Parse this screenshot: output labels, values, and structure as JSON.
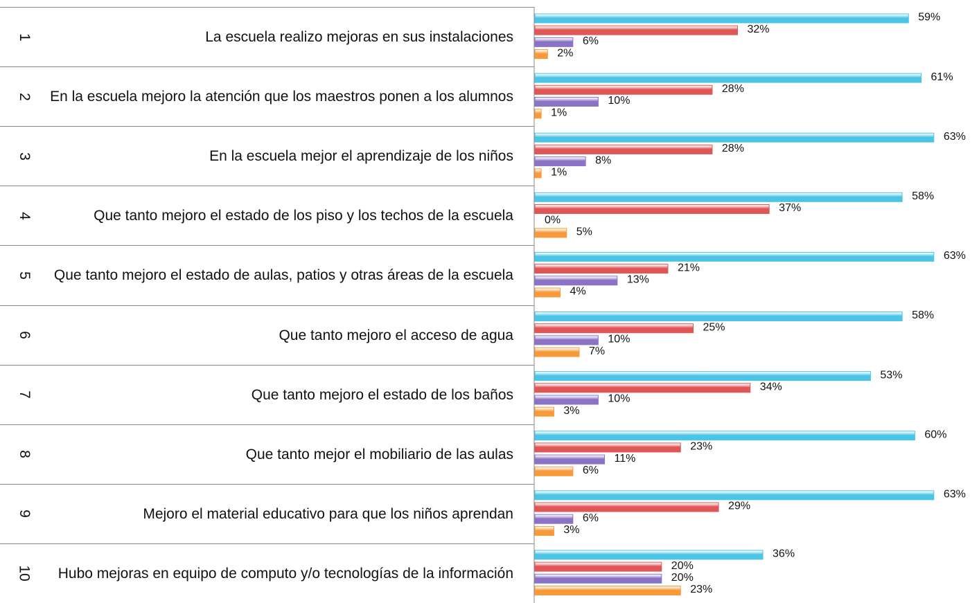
{
  "chart_data": {
    "type": "bar",
    "orientation": "horizontal",
    "row_numbers": [
      "1",
      "2",
      "3",
      "4",
      "5",
      "6",
      "7",
      "8",
      "9",
      "10"
    ],
    "categories": [
      "La escuela realizo mejoras en sus instalaciones",
      "En la escuela mejoro la atención que los maestros ponen a los alumnos",
      "En la escuela mejor el aprendizaje de los niños",
      "Que tanto mejoro el estado de los piso y los techos de la escuela",
      "Que tanto mejoro el estado de aulas, patios y otras áreas de la escuela",
      "Que tanto mejoro el acceso de agua",
      "Que tanto mejoro el estado de los baños",
      "Que tanto mejor el mobiliario de las aulas",
      "Mejoro el material educativo para que los niños aprendan",
      "Hubo mejoras en equipo de computo y/o tecnologías de la información"
    ],
    "series": [
      {
        "color": "#4cc4e6",
        "values": [
          59,
          61,
          63,
          58,
          63,
          58,
          53,
          60,
          63,
          36
        ],
        "value_labels": [
          "59%",
          "61%",
          "63%",
          "58%",
          "63%",
          "58%",
          "53%",
          "60%",
          "63%",
          "36%"
        ]
      },
      {
        "color": "#e05555",
        "values": [
          32,
          28,
          28,
          37,
          21,
          25,
          34,
          23,
          29,
          20
        ],
        "value_labels": [
          "32%",
          "28%",
          "28%",
          "37%",
          "21%",
          "25%",
          "34%",
          "23%",
          "29%",
          "20%"
        ]
      },
      {
        "color": "#8a72c4",
        "values": [
          6,
          10,
          8,
          0,
          13,
          10,
          10,
          11,
          6,
          20
        ],
        "value_labels": [
          "6%",
          "10%",
          "8%",
          "0%",
          "13%",
          "10%",
          "10%",
          "11%",
          "6%",
          "20%"
        ]
      },
      {
        "color": "#f99a3a",
        "values": [
          2,
          1,
          1,
          5,
          4,
          7,
          3,
          6,
          3,
          23
        ],
        "value_labels": [
          "2%",
          "1%",
          "1%",
          "5%",
          "4%",
          "7%",
          "3%",
          "6%",
          "3%",
          "23%"
        ]
      }
    ]
  }
}
